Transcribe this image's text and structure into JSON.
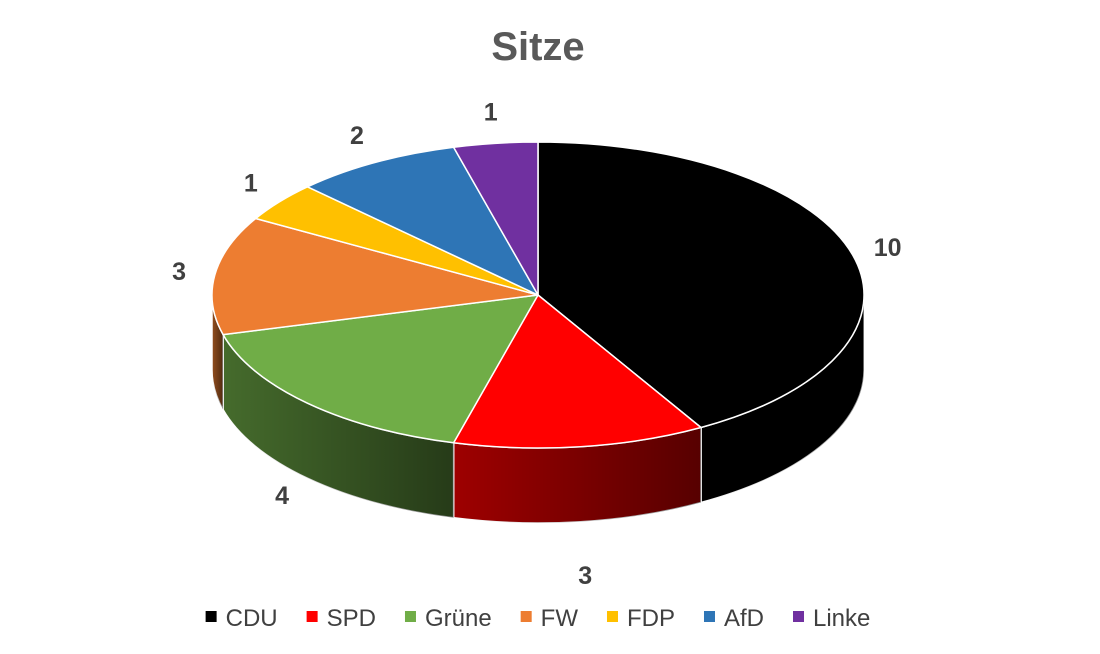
{
  "chart_data": {
    "type": "pie",
    "title": "Sitze",
    "categories": [
      "CDU",
      "SPD",
      "Grüne",
      "FW",
      "FDP",
      "AfD",
      "Linke"
    ],
    "values": [
      10,
      3,
      4,
      3,
      1,
      2,
      1
    ],
    "colors": [
      "#000000",
      "#ff0000",
      "#70ad47",
      "#ed7d31",
      "#ffc000",
      "#2e75b6",
      "#7030a0"
    ],
    "three_d": true,
    "legend_position": "bottom",
    "data_labels": "values"
  }
}
